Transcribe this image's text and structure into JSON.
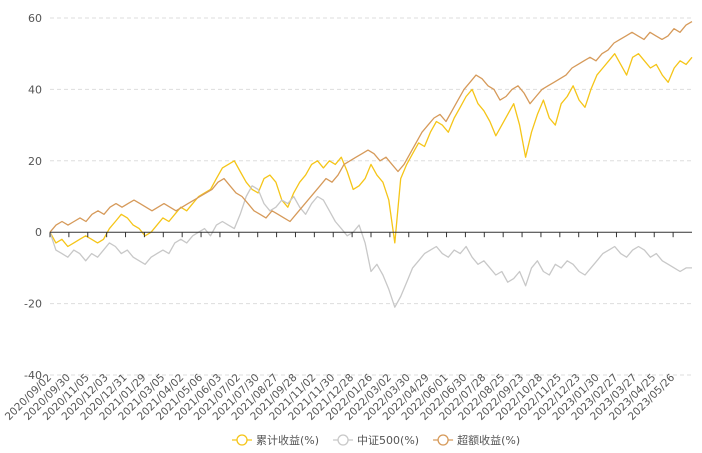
{
  "chart_data": {
    "type": "line",
    "title": "",
    "xlabel": "",
    "ylabel": "",
    "ylim": [
      -40,
      60
    ],
    "yticks": [
      -40,
      -20,
      0,
      20,
      40,
      60
    ],
    "grid": "horizontal dashed",
    "legend_position": "bottom",
    "x_tick_labels": [
      "2020/09/02",
      "2020/09/30",
      "2020/11/05",
      "2020/12/03",
      "2020/12/31",
      "2021/01/29",
      "2021/03/05",
      "2021/04/02",
      "2021/05/06",
      "2021/06/03",
      "2021/07/02",
      "2021/07/30",
      "2021/08/27",
      "2021/09/28",
      "2021/11/02",
      "2021/11/30",
      "2021/12/28",
      "2022/01/26",
      "2022/03/02",
      "2022/03/30",
      "2022/04/29",
      "2022/06/01",
      "2022/06/30",
      "2022/07/28",
      "2022/08/25",
      "2022/09/23",
      "2022/10/28",
      "2022/11/25",
      "2022/12/23",
      "2023/01/30",
      "2023/02/27",
      "2023/03/27",
      "2023/04/25",
      "2023/05/26"
    ],
    "series": [
      {
        "name": "累计收益(%)",
        "color": "#f5c518",
        "values": [
          0,
          -3,
          -2,
          -4,
          -3,
          -2,
          -1,
          -2,
          -3,
          -2,
          1,
          3,
          5,
          4,
          2,
          1,
          -1,
          0,
          2,
          4,
          3,
          5,
          7,
          6,
          8,
          10,
          11,
          12,
          15,
          18,
          19,
          20,
          17,
          14,
          12,
          11,
          15,
          16,
          14,
          9,
          7,
          11,
          14,
          16,
          19,
          20,
          18,
          20,
          19,
          21,
          17,
          12,
          13,
          15,
          19,
          16,
          14,
          9,
          -3,
          15,
          19,
          22,
          25,
          24,
          28,
          31,
          30,
          28,
          32,
          35,
          38,
          40,
          36,
          34,
          31,
          27,
          30,
          33,
          36,
          30,
          21,
          28,
          33,
          37,
          32,
          30,
          36,
          38,
          41,
          37,
          35,
          40,
          44,
          46,
          48,
          50,
          47,
          44,
          49,
          50,
          48,
          46,
          47,
          44,
          42,
          46,
          48,
          47,
          49
        ]
      },
      {
        "name": "中证500(%)",
        "color": "#c8c8c8",
        "values": [
          0,
          -5,
          -6,
          -7,
          -5,
          -6,
          -8,
          -6,
          -7,
          -5,
          -3,
          -4,
          -6,
          -5,
          -7,
          -8,
          -9,
          -7,
          -6,
          -5,
          -6,
          -3,
          -2,
          -3,
          -1,
          0,
          1,
          -1,
          2,
          3,
          2,
          1,
          5,
          10,
          13,
          12,
          8,
          6,
          7,
          9,
          8,
          10,
          7,
          5,
          8,
          10,
          9,
          6,
          3,
          1,
          -1,
          0,
          2,
          -3,
          -11,
          -9,
          -12,
          -16,
          -21,
          -18,
          -14,
          -10,
          -8,
          -6,
          -5,
          -4,
          -6,
          -7,
          -5,
          -6,
          -4,
          -7,
          -9,
          -8,
          -10,
          -12,
          -11,
          -14,
          -13,
          -11,
          -15,
          -10,
          -8,
          -11,
          -12,
          -9,
          -10,
          -8,
          -9,
          -11,
          -12,
          -10,
          -8,
          -6,
          -5,
          -4,
          -6,
          -7,
          -5,
          -4,
          -5,
          -7,
          -6,
          -8,
          -9,
          -10,
          -11,
          -10,
          -10
        ]
      },
      {
        "name": "超额收益(%)",
        "color": "#d69a5a",
        "values": [
          0,
          2,
          3,
          2,
          3,
          4,
          3,
          5,
          6,
          5,
          7,
          8,
          7,
          8,
          9,
          8,
          7,
          6,
          7,
          8,
          7,
          6,
          7,
          8,
          9,
          10,
          11,
          12,
          14,
          15,
          13,
          11,
          10,
          8,
          6,
          5,
          4,
          6,
          5,
          4,
          3,
          5,
          7,
          9,
          11,
          13,
          15,
          14,
          16,
          19,
          20,
          21,
          22,
          23,
          22,
          20,
          21,
          19,
          17,
          19,
          22,
          25,
          28,
          30,
          32,
          33,
          31,
          34,
          37,
          40,
          42,
          44,
          43,
          41,
          40,
          37,
          38,
          40,
          41,
          39,
          36,
          38,
          40,
          41,
          42,
          43,
          44,
          46,
          47,
          48,
          49,
          48,
          50,
          51,
          53,
          54,
          55,
          56,
          55,
          54,
          56,
          55,
          54,
          55,
          57,
          56,
          58,
          59
        ]
      }
    ]
  }
}
